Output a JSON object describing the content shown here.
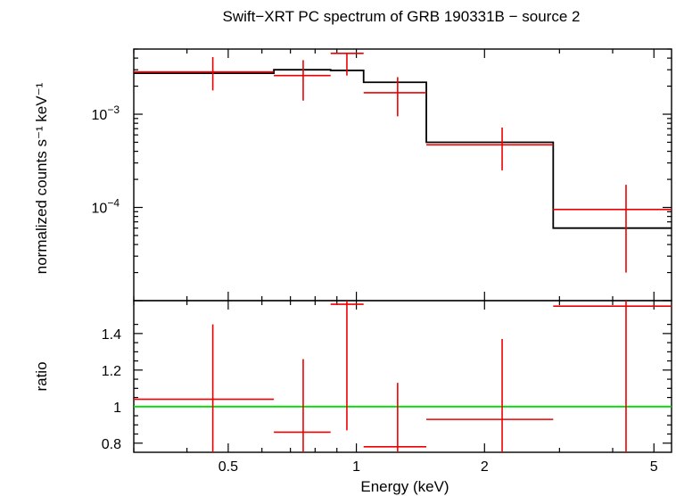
{
  "chart_data": [
    {
      "type": "scatter",
      "panel": "spectrum",
      "title": "Swift−XRT PC spectrum of GRB 190331B − source 2",
      "xlabel": "Energy (keV)",
      "ylabel": "normalized counts s⁻¹ keV⁻¹",
      "x_scale": "log",
      "y_scale": "log",
      "xlim": [
        0.3,
        5.5
      ],
      "ylim": [
        1e-05,
        0.005
      ],
      "y_ticks": [
        {
          "value": 0.001,
          "mantissa": "10",
          "exp": "−3"
        },
        {
          "value": 0.0001,
          "mantissa": "10",
          "exp": "−4"
        }
      ],
      "series": [
        {
          "color": "#ee0000",
          "points": [
            {
              "x": 0.46,
              "xlo": 0.3,
              "xhi": 0.64,
              "y": 0.00285,
              "ylo": 0.0018,
              "yhi": 0.0041
            },
            {
              "x": 0.75,
              "xlo": 0.64,
              "xhi": 0.87,
              "y": 0.0026,
              "ylo": 0.0014,
              "yhi": 0.0038
            },
            {
              "x": 0.95,
              "xlo": 0.87,
              "xhi": 1.04,
              "y": 0.0045,
              "ylo": 0.0026,
              "yhi": 0.0045
            },
            {
              "x": 1.25,
              "xlo": 1.04,
              "xhi": 1.46,
              "y": 0.0017,
              "ylo": 0.00095,
              "yhi": 0.0025
            },
            {
              "x": 2.2,
              "xlo": 1.46,
              "xhi": 2.9,
              "y": 0.00047,
              "ylo": 0.00025,
              "yhi": 0.00072
            },
            {
              "x": 4.3,
              "xlo": 2.9,
              "xhi": 5.5,
              "y": 9.5e-05,
              "ylo": 2e-05,
              "yhi": 0.000175
            }
          ]
        },
        {
          "color": "#000000",
          "model_steps": [
            {
              "xlo": 0.3,
              "xhi": 0.64,
              "y": 0.00275
            },
            {
              "xlo": 0.64,
              "xhi": 0.87,
              "y": 0.003
            },
            {
              "xlo": 0.87,
              "xhi": 1.04,
              "y": 0.00295
            },
            {
              "xlo": 1.04,
              "xhi": 1.46,
              "y": 0.0022
            },
            {
              "xlo": 1.46,
              "xhi": 2.9,
              "y": 0.0005
            },
            {
              "xlo": 2.9,
              "xhi": 5.5,
              "y": 6e-05
            }
          ]
        }
      ]
    },
    {
      "type": "scatter",
      "panel": "ratio",
      "xlabel": "Energy (keV)",
      "ylabel": "ratio",
      "x_scale": "log",
      "y_scale": "linear",
      "xlim": [
        0.3,
        5.5
      ],
      "ylim": [
        0.75,
        1.58
      ],
      "x_ticks": [
        {
          "value": 0.5,
          "label": "0.5"
        },
        {
          "value": 1,
          "label": "1"
        },
        {
          "value": 2,
          "label": "2"
        },
        {
          "value": 5,
          "label": "5"
        }
      ],
      "y_ticks": [
        {
          "value": 0.8,
          "label": "0.8"
        },
        {
          "value": 1.0,
          "label": "1"
        },
        {
          "value": 1.2,
          "label": "1.2"
        },
        {
          "value": 1.4,
          "label": "1.4"
        }
      ],
      "reference_line": {
        "y": 1,
        "color": "#00dd00"
      },
      "series": [
        {
          "color": "#ee0000",
          "points": [
            {
              "x": 0.46,
              "xlo": 0.3,
              "xhi": 0.64,
              "y": 1.04,
              "ylo": 0.75,
              "yhi": 1.45
            },
            {
              "x": 0.75,
              "xlo": 0.64,
              "xhi": 0.87,
              "y": 0.86,
              "ylo": 0.75,
              "yhi": 1.26
            },
            {
              "x": 0.95,
              "xlo": 0.87,
              "xhi": 1.04,
              "y": 1.56,
              "ylo": 0.87,
              "yhi": 1.58
            },
            {
              "x": 1.25,
              "xlo": 1.04,
              "xhi": 1.46,
              "y": 0.78,
              "ylo": 0.75,
              "yhi": 1.13
            },
            {
              "x": 2.2,
              "xlo": 1.46,
              "xhi": 2.9,
              "y": 0.93,
              "ylo": 0.75,
              "yhi": 1.37
            },
            {
              "x": 4.3,
              "xlo": 2.9,
              "xhi": 5.5,
              "y": 1.55,
              "ylo": 0.75,
              "yhi": 1.58
            }
          ]
        }
      ]
    }
  ]
}
